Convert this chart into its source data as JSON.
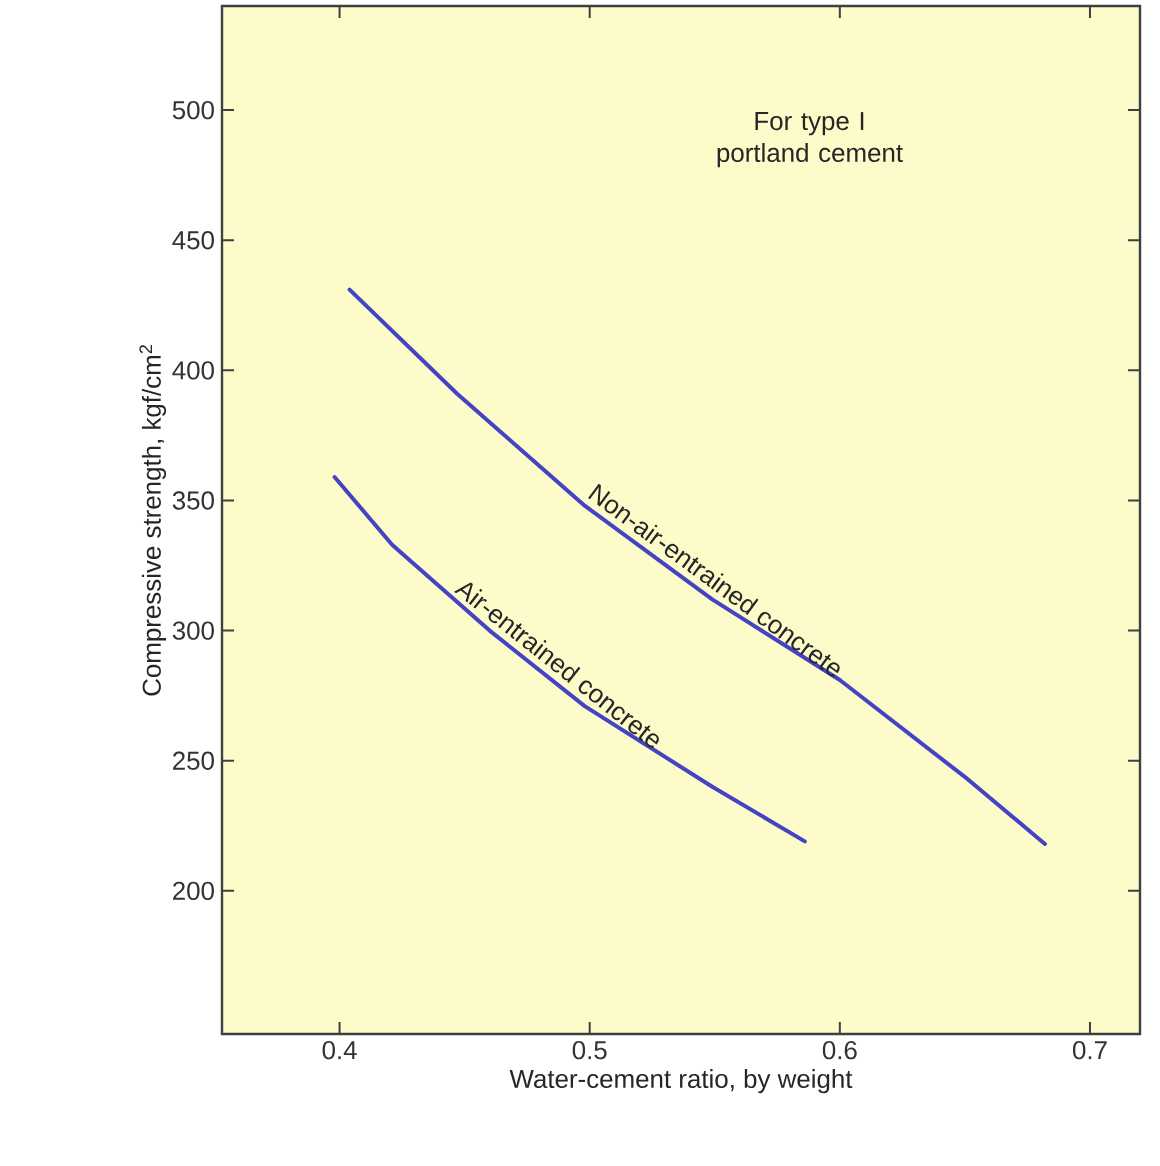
{
  "chart_data": {
    "type": "line",
    "xlabel": "Water-cement ratio, by weight",
    "ylabel": "Compressive strength, kgf/cm$^{2}$",
    "annotations": [
      "For type I portland cement"
    ],
    "xlim": [
      0.353,
      0.72
    ],
    "ylim": [
      145,
      540
    ],
    "xticks": [
      0.4,
      0.5,
      0.6,
      0.7
    ],
    "yticks": [
      200,
      250,
      300,
      350,
      400,
      450,
      500
    ],
    "grid": false,
    "legend": false,
    "marker": "none",
    "line_style": "solid",
    "series": [
      {
        "name": "Non-air-entrained concrete",
        "color": "#4343c4",
        "x": [
          0.404,
          0.447,
          0.498,
          0.549,
          0.6,
          0.651,
          0.682
        ],
        "values": [
          431,
          391,
          348,
          312,
          281,
          243,
          218
        ]
      },
      {
        "name": "Air-entrained concrete",
        "color": "#4343c4",
        "x": [
          0.398,
          0.421,
          0.46,
          0.498,
          0.549,
          0.586
        ],
        "values": [
          359,
          333,
          300,
          271,
          240,
          219
        ]
      }
    ]
  }
}
